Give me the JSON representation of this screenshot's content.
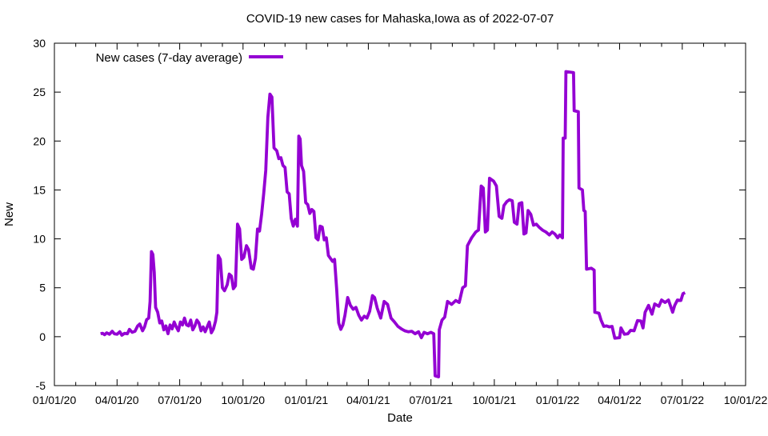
{
  "chart_data": {
    "type": "line",
    "title": "COVID-19 new cases for Mahaska,Iowa as of 2022-07-07",
    "xlabel": "Date",
    "ylabel": "New",
    "xlim": [
      "2020-01-01",
      "2022-10-01"
    ],
    "ylim": [
      -5,
      30
    ],
    "grid": false,
    "x_ticks": [
      {
        "date": "2020-01-01",
        "label": "01/01/20"
      },
      {
        "date": "2020-04-01",
        "label": "04/01/20"
      },
      {
        "date": "2020-07-01",
        "label": "07/01/20"
      },
      {
        "date": "2020-10-01",
        "label": "10/01/20"
      },
      {
        "date": "2021-01-01",
        "label": "01/01/21"
      },
      {
        "date": "2021-04-01",
        "label": "04/01/21"
      },
      {
        "date": "2021-07-01",
        "label": "07/01/21"
      },
      {
        "date": "2021-10-01",
        "label": "10/01/21"
      },
      {
        "date": "2022-01-01",
        "label": "01/01/22"
      },
      {
        "date": "2022-04-01",
        "label": "04/01/22"
      },
      {
        "date": "2022-07-01",
        "label": "07/01/22"
      },
      {
        "date": "2022-10-01",
        "label": "10/01/22"
      }
    ],
    "x_minor_ticks": "monthly",
    "y_ticks": [
      -5,
      0,
      5,
      10,
      15,
      20,
      25,
      30
    ],
    "legend": {
      "label": "New cases (7-day average)",
      "position": "top-left"
    },
    "line": {
      "color": "#9400D3",
      "width": 3.8
    },
    "series": [
      {
        "name": "New cases (7-day average)",
        "points": [
          [
            "2020-03-08",
            0.3
          ],
          [
            "2020-03-11",
            0.35
          ],
          [
            "2020-03-14",
            0.2
          ],
          [
            "2020-03-17",
            0.4
          ],
          [
            "2020-03-21",
            0.25
          ],
          [
            "2020-03-25",
            0.55
          ],
          [
            "2020-03-28",
            0.3
          ],
          [
            "2020-04-01",
            0.25
          ],
          [
            "2020-04-05",
            0.5
          ],
          [
            "2020-04-08",
            0.15
          ],
          [
            "2020-04-12",
            0.35
          ],
          [
            "2020-04-16",
            0.3
          ],
          [
            "2020-04-19",
            0.75
          ],
          [
            "2020-04-23",
            0.45
          ],
          [
            "2020-04-27",
            0.55
          ],
          [
            "2020-05-01",
            1.1
          ],
          [
            "2020-05-04",
            1.3
          ],
          [
            "2020-05-08",
            0.6
          ],
          [
            "2020-05-11",
            1.0
          ],
          [
            "2020-05-14",
            1.75
          ],
          [
            "2020-05-17",
            1.9
          ],
          [
            "2020-05-19",
            3.6
          ],
          [
            "2020-05-21",
            8.7
          ],
          [
            "2020-05-23",
            8.4
          ],
          [
            "2020-05-25",
            6.6
          ],
          [
            "2020-05-27",
            3.0
          ],
          [
            "2020-05-30",
            2.5
          ],
          [
            "2020-06-02",
            1.4
          ],
          [
            "2020-06-05",
            1.6
          ],
          [
            "2020-06-08",
            0.7
          ],
          [
            "2020-06-11",
            1.1
          ],
          [
            "2020-06-14",
            0.3
          ],
          [
            "2020-06-17",
            1.2
          ],
          [
            "2020-06-20",
            0.8
          ],
          [
            "2020-06-23",
            1.5
          ],
          [
            "2020-06-26",
            1.0
          ],
          [
            "2020-06-29",
            0.6
          ],
          [
            "2020-07-02",
            1.5
          ],
          [
            "2020-07-05",
            1.2
          ],
          [
            "2020-07-08",
            1.9
          ],
          [
            "2020-07-11",
            1.2
          ],
          [
            "2020-07-14",
            1.1
          ],
          [
            "2020-07-17",
            1.7
          ],
          [
            "2020-07-20",
            0.7
          ],
          [
            "2020-07-23",
            1.1
          ],
          [
            "2020-07-26",
            1.7
          ],
          [
            "2020-07-29",
            1.4
          ],
          [
            "2020-08-01",
            0.6
          ],
          [
            "2020-08-04",
            1.0
          ],
          [
            "2020-08-07",
            0.5
          ],
          [
            "2020-08-10",
            1.0
          ],
          [
            "2020-08-13",
            1.5
          ],
          [
            "2020-08-16",
            0.4
          ],
          [
            "2020-08-19",
            0.8
          ],
          [
            "2020-08-22",
            1.6
          ],
          [
            "2020-08-24",
            2.5
          ],
          [
            "2020-08-26",
            8.3
          ],
          [
            "2020-08-29",
            7.9
          ],
          [
            "2020-09-01",
            5.0
          ],
          [
            "2020-09-04",
            4.7
          ],
          [
            "2020-09-08",
            5.3
          ],
          [
            "2020-09-11",
            6.4
          ],
          [
            "2020-09-14",
            6.2
          ],
          [
            "2020-09-17",
            4.9
          ],
          [
            "2020-09-20",
            5.2
          ],
          [
            "2020-09-23",
            11.5
          ],
          [
            "2020-09-26",
            11.0
          ],
          [
            "2020-09-29",
            7.9
          ],
          [
            "2020-10-02",
            8.1
          ],
          [
            "2020-10-06",
            9.3
          ],
          [
            "2020-10-09",
            8.9
          ],
          [
            "2020-10-13",
            7.0
          ],
          [
            "2020-10-16",
            6.9
          ],
          [
            "2020-10-19",
            8.0
          ],
          [
            "2020-10-22",
            11.0
          ],
          [
            "2020-10-25",
            10.8
          ],
          [
            "2020-10-28",
            12.5
          ],
          [
            "2020-10-31",
            14.6
          ],
          [
            "2020-11-03",
            17.0
          ],
          [
            "2020-11-06",
            22.4
          ],
          [
            "2020-11-09",
            24.8
          ],
          [
            "2020-11-12",
            24.5
          ],
          [
            "2020-11-15",
            19.3
          ],
          [
            "2020-11-19",
            19.0
          ],
          [
            "2020-11-22",
            18.2
          ],
          [
            "2020-11-25",
            18.3
          ],
          [
            "2020-11-28",
            17.5
          ],
          [
            "2020-12-01",
            17.3
          ],
          [
            "2020-12-04",
            14.8
          ],
          [
            "2020-12-07",
            14.6
          ],
          [
            "2020-12-10",
            12.1
          ],
          [
            "2020-12-13",
            11.3
          ],
          [
            "2020-12-16",
            12.0
          ],
          [
            "2020-12-19",
            11.3
          ],
          [
            "2020-12-21",
            20.5
          ],
          [
            "2020-12-23",
            20.2
          ],
          [
            "2020-12-25",
            17.5
          ],
          [
            "2020-12-28",
            16.9
          ],
          [
            "2020-12-31",
            13.7
          ],
          [
            "2021-01-03",
            13.5
          ],
          [
            "2021-01-06",
            12.6
          ],
          [
            "2021-01-09",
            13.0
          ],
          [
            "2021-01-12",
            12.8
          ],
          [
            "2021-01-15",
            10.1
          ],
          [
            "2021-01-18",
            9.9
          ],
          [
            "2021-01-21",
            11.3
          ],
          [
            "2021-01-24",
            11.2
          ],
          [
            "2021-01-27",
            9.9
          ],
          [
            "2021-01-30",
            10.1
          ],
          [
            "2021-02-02",
            8.3
          ],
          [
            "2021-02-05",
            8.0
          ],
          [
            "2021-02-08",
            7.7
          ],
          [
            "2021-02-11",
            7.9
          ],
          [
            "2021-02-14",
            4.9
          ],
          [
            "2021-02-17",
            1.4
          ],
          [
            "2021-02-20",
            0.75
          ],
          [
            "2021-02-23",
            1.2
          ],
          [
            "2021-02-26",
            2.2
          ],
          [
            "2021-03-02",
            4.0
          ],
          [
            "2021-03-06",
            3.2
          ],
          [
            "2021-03-10",
            2.8
          ],
          [
            "2021-03-14",
            3.0
          ],
          [
            "2021-03-18",
            2.2
          ],
          [
            "2021-03-22",
            1.7
          ],
          [
            "2021-03-26",
            2.1
          ],
          [
            "2021-03-30",
            1.9
          ],
          [
            "2021-04-03",
            2.6
          ],
          [
            "2021-04-07",
            4.2
          ],
          [
            "2021-04-10",
            4.0
          ],
          [
            "2021-04-14",
            2.9
          ],
          [
            "2021-04-19",
            1.9
          ],
          [
            "2021-04-24",
            3.6
          ],
          [
            "2021-04-29",
            3.3
          ],
          [
            "2021-05-04",
            1.9
          ],
          [
            "2021-05-09",
            1.5
          ],
          [
            "2021-05-14",
            1.05
          ],
          [
            "2021-05-19",
            0.8
          ],
          [
            "2021-05-24",
            0.6
          ],
          [
            "2021-05-29",
            0.5
          ],
          [
            "2021-06-03",
            0.55
          ],
          [
            "2021-06-08",
            0.3
          ],
          [
            "2021-06-13",
            0.5
          ],
          [
            "2021-06-17",
            -0.1
          ],
          [
            "2021-06-21",
            0.45
          ],
          [
            "2021-06-26",
            0.3
          ],
          [
            "2021-07-01",
            0.45
          ],
          [
            "2021-07-05",
            0.3
          ],
          [
            "2021-07-07",
            -4.0
          ],
          [
            "2021-07-12",
            -4.1
          ],
          [
            "2021-07-13",
            0.7
          ],
          [
            "2021-07-17",
            1.7
          ],
          [
            "2021-07-21",
            2.0
          ],
          [
            "2021-07-25",
            3.6
          ],
          [
            "2021-07-31",
            3.3
          ],
          [
            "2021-08-06",
            3.7
          ],
          [
            "2021-08-11",
            3.5
          ],
          [
            "2021-08-16",
            5.0
          ],
          [
            "2021-08-20",
            5.2
          ],
          [
            "2021-08-23",
            9.3
          ],
          [
            "2021-08-29",
            10.1
          ],
          [
            "2021-09-04",
            10.7
          ],
          [
            "2021-09-08",
            10.9
          ],
          [
            "2021-09-12",
            15.4
          ],
          [
            "2021-09-15",
            15.2
          ],
          [
            "2021-09-18",
            10.7
          ],
          [
            "2021-09-21",
            10.9
          ],
          [
            "2021-09-24",
            16.2
          ],
          [
            "2021-09-30",
            15.9
          ],
          [
            "2021-10-04",
            15.4
          ],
          [
            "2021-10-08",
            12.3
          ],
          [
            "2021-10-12",
            12.1
          ],
          [
            "2021-10-15",
            13.4
          ],
          [
            "2021-10-19",
            13.8
          ],
          [
            "2021-10-23",
            14.0
          ],
          [
            "2021-10-27",
            13.9
          ],
          [
            "2021-10-30",
            11.7
          ],
          [
            "2021-11-03",
            11.5
          ],
          [
            "2021-11-06",
            13.6
          ],
          [
            "2021-11-10",
            13.7
          ],
          [
            "2021-11-13",
            10.5
          ],
          [
            "2021-11-16",
            10.6
          ],
          [
            "2021-11-19",
            12.9
          ],
          [
            "2021-11-23",
            12.5
          ],
          [
            "2021-11-27",
            11.4
          ],
          [
            "2021-12-01",
            11.5
          ],
          [
            "2021-12-05",
            11.2
          ],
          [
            "2021-12-10",
            10.9
          ],
          [
            "2021-12-15",
            10.7
          ],
          [
            "2021-12-20",
            10.4
          ],
          [
            "2021-12-24",
            10.7
          ],
          [
            "2021-12-28",
            10.5
          ],
          [
            "2022-01-01",
            10.1
          ],
          [
            "2022-01-04",
            10.4
          ],
          [
            "2022-01-08",
            10.1
          ],
          [
            "2022-01-09",
            20.3
          ],
          [
            "2022-01-12",
            20.3
          ],
          [
            "2022-01-13",
            27.1
          ],
          [
            "2022-01-24",
            27.0
          ],
          [
            "2022-01-25",
            23.1
          ],
          [
            "2022-01-31",
            23.0
          ],
          [
            "2022-02-01",
            15.2
          ],
          [
            "2022-02-06",
            15.0
          ],
          [
            "2022-02-08",
            12.9
          ],
          [
            "2022-02-10",
            12.8
          ],
          [
            "2022-02-12",
            6.9
          ],
          [
            "2022-02-19",
            7.0
          ],
          [
            "2022-02-23",
            6.8
          ],
          [
            "2022-02-24",
            2.5
          ],
          [
            "2022-03-02",
            2.4
          ],
          [
            "2022-03-05",
            1.7
          ],
          [
            "2022-03-09",
            1.05
          ],
          [
            "2022-03-13",
            1.1
          ],
          [
            "2022-03-17",
            1.0
          ],
          [
            "2022-03-21",
            1.05
          ],
          [
            "2022-03-25",
            -0.15
          ],
          [
            "2022-04-01",
            -0.1
          ],
          [
            "2022-04-03",
            0.9
          ],
          [
            "2022-04-08",
            0.25
          ],
          [
            "2022-04-13",
            0.3
          ],
          [
            "2022-04-17",
            0.65
          ],
          [
            "2022-04-22",
            0.6
          ],
          [
            "2022-04-27",
            1.65
          ],
          [
            "2022-05-02",
            1.6
          ],
          [
            "2022-05-05",
            0.9
          ],
          [
            "2022-05-08",
            2.5
          ],
          [
            "2022-05-13",
            3.2
          ],
          [
            "2022-05-18",
            2.3
          ],
          [
            "2022-05-22",
            3.35
          ],
          [
            "2022-05-28",
            3.1
          ],
          [
            "2022-06-01",
            3.75
          ],
          [
            "2022-06-06",
            3.5
          ],
          [
            "2022-06-11",
            3.75
          ],
          [
            "2022-06-17",
            2.5
          ],
          [
            "2022-06-20",
            3.2
          ],
          [
            "2022-06-24",
            3.75
          ],
          [
            "2022-06-29",
            3.7
          ],
          [
            "2022-07-02",
            4.4
          ],
          [
            "2022-07-05",
            4.5
          ]
        ]
      }
    ]
  }
}
